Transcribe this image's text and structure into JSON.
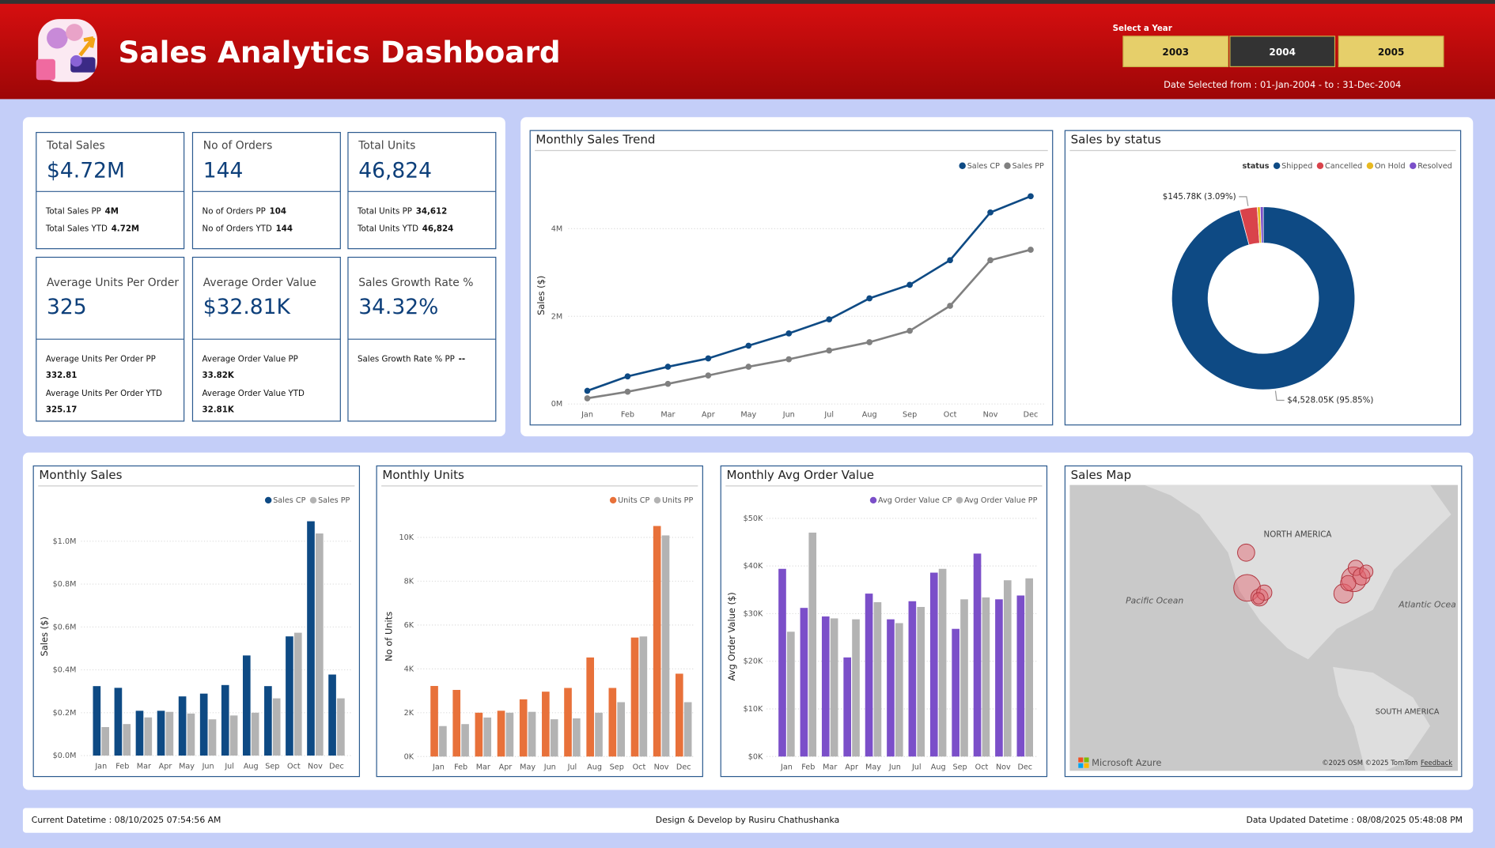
{
  "header": {
    "title": "Sales Analytics Dashboard",
    "year_label": "Select a Year",
    "years": [
      "2003",
      "2004",
      "2005"
    ],
    "selected_year": "2004",
    "date_range": "Date Selected from : 01-Jan-2004 - to : 31-Dec-2004"
  },
  "kpis": [
    {
      "title": "Total Sales",
      "value": "$4.72M",
      "details": [
        {
          "label": "Total Sales PP",
          "value": "4M"
        },
        {
          "label": "Total Sales YTD",
          "value": "4.72M"
        }
      ]
    },
    {
      "title": "No of Orders",
      "value": "144",
      "details": [
        {
          "label": "No of Orders PP",
          "value": "104"
        },
        {
          "label": "No of Orders YTD",
          "value": "144"
        }
      ]
    },
    {
      "title": "Total Units",
      "value": "46,824",
      "details": [
        {
          "label": "Total Units PP",
          "value": "34,612"
        },
        {
          "label": "Total Units YTD",
          "value": "46,824"
        }
      ]
    },
    {
      "title": "Average Units Per Order",
      "value": "325",
      "details": [
        {
          "label": "Average Units Per Order PP",
          "value": "332.81"
        },
        {
          "label": "Average Units Per Order YTD",
          "value": "325.17"
        }
      ]
    },
    {
      "title": "Average Order Value",
      "value": "$32.81K",
      "details": [
        {
          "label": "Average Order Value PP",
          "value": "33.82K"
        },
        {
          "label": "Average Order Value YTD",
          "value": "32.81K"
        }
      ]
    },
    {
      "title": "Sales Growth Rate %",
      "value": "34.32%",
      "details": [
        {
          "label": "Sales Growth Rate % PP",
          "value": "--"
        }
      ]
    }
  ],
  "chart_data": [
    {
      "type": "line",
      "title": "Monthly Sales Trend",
      "y_label": "Sales ($)",
      "categories": [
        "Jan",
        "Feb",
        "Mar",
        "Apr",
        "May",
        "Jun",
        "Jul",
        "Aug",
        "Sep",
        "Oct",
        "Nov",
        "Dec"
      ],
      "series": [
        {
          "name": "Sales CP",
          "color": "#0e4a84",
          "values": [
            300000,
            630000,
            850000,
            1040000,
            1330000,
            1610000,
            1930000,
            2410000,
            2720000,
            3280000,
            4370000,
            4740000
          ]
        },
        {
          "name": "Sales PP",
          "color": "#808080",
          "values": [
            130000,
            280000,
            460000,
            650000,
            850000,
            1020000,
            1220000,
            1410000,
            1670000,
            2240000,
            3280000,
            3520000
          ]
        }
      ],
      "ylim": [
        0,
        5000000
      ],
      "yticks": [
        {
          "value": 0,
          "label": "0M"
        },
        {
          "value": 2000000,
          "label": "2M"
        },
        {
          "value": 4000000,
          "label": "4M"
        }
      ],
      "grid": true,
      "legend": "top-right"
    },
    {
      "type": "donut",
      "title": "Sales by status",
      "legend_title": "status",
      "categories": [
        "Shipped",
        "Cancelled",
        "On Hold",
        "Resolved"
      ],
      "values": [
        4528050,
        145780,
        25000,
        25270
      ],
      "value_labels": [
        "$4,528.05K (95.85%)",
        "$145.78K (3.09%)",
        null,
        null
      ],
      "colors": [
        "#0e4a84",
        "#d9434b",
        "#e8b920",
        "#7b4fc9"
      ],
      "legend": "top-right"
    },
    {
      "type": "bar",
      "title": "Monthly Sales",
      "y_label": "Sales ($)",
      "categories": [
        "Jan",
        "Feb",
        "Mar",
        "Apr",
        "May",
        "Jun",
        "Jul",
        "Aug",
        "Sep",
        "Oct",
        "Nov",
        "Dec"
      ],
      "series": [
        {
          "name": "Sales CP",
          "color": "#0e4a84",
          "values": [
            324000,
            316000,
            209000,
            209000,
            276000,
            289000,
            329000,
            467000,
            324000,
            556000,
            1093000,
            378000
          ]
        },
        {
          "name": "Sales PP",
          "color": "#b3b3b3",
          "values": [
            133000,
            147000,
            178000,
            204000,
            196000,
            169000,
            187000,
            200000,
            267000,
            573000,
            1036000,
            267000
          ]
        }
      ],
      "ylim": [
        0,
        1120000
      ],
      "yticks": [
        {
          "value": 0,
          "label": "$0.0M"
        },
        {
          "value": 200000,
          "label": "$0.2M"
        },
        {
          "value": 400000,
          "label": "$0.4M"
        },
        {
          "value": 600000,
          "label": "$0.6M"
        },
        {
          "value": 800000,
          "label": "$0.8M"
        },
        {
          "value": 1000000,
          "label": "$1.0M"
        }
      ],
      "grid": true,
      "legend": "top-right"
    },
    {
      "type": "bar",
      "title": "Monthly Units",
      "y_label": "No of Units",
      "categories": [
        "Jan",
        "Feb",
        "Mar",
        "Apr",
        "May",
        "Jun",
        "Jul",
        "Aug",
        "Sep",
        "Oct",
        "Nov",
        "Dec"
      ],
      "series": [
        {
          "name": "Units CP",
          "color": "#e8713a",
          "values": [
            3220,
            3040,
            2000,
            2090,
            2610,
            2960,
            3130,
            4520,
            3130,
            5430,
            10520,
            3780
          ]
        },
        {
          "name": "Units PP",
          "color": "#b3b3b3",
          "values": [
            1390,
            1480,
            1780,
            2000,
            2040,
            1700,
            1740,
            2000,
            2480,
            5480,
            10090,
            2480
          ]
        }
      ],
      "ylim": [
        0,
        11000
      ],
      "yticks": [
        {
          "value": 0,
          "label": "0K"
        },
        {
          "value": 2000,
          "label": "2K"
        },
        {
          "value": 4000,
          "label": "4K"
        },
        {
          "value": 6000,
          "label": "6K"
        },
        {
          "value": 8000,
          "label": "8K"
        },
        {
          "value": 10000,
          "label": "10K"
        }
      ],
      "grid": true,
      "legend": "top-right"
    },
    {
      "type": "bar",
      "title": "Monthly Avg Order Value",
      "y_label": "Avg Order Value ($)",
      "categories": [
        "Jan",
        "Feb",
        "Mar",
        "Apr",
        "May",
        "Jun",
        "Jul",
        "Aug",
        "Sep",
        "Oct",
        "Nov",
        "Dec"
      ],
      "series": [
        {
          "name": "Avg Order Value CP",
          "color": "#7b4fc9",
          "values": [
            39400,
            31200,
            29400,
            20800,
            34200,
            28800,
            32600,
            38600,
            26800,
            42600,
            33000,
            33800
          ]
        },
        {
          "name": "Avg Order Value PP",
          "color": "#b3b3b3",
          "values": [
            26200,
            47000,
            29000,
            28800,
            32400,
            28000,
            31400,
            39400,
            33000,
            33400,
            37000,
            37400
          ]
        }
      ],
      "ylim": [
        0,
        51000
      ],
      "yticks": [
        {
          "value": 0,
          "label": "$0K"
        },
        {
          "value": 10000,
          "label": "$10K"
        },
        {
          "value": 20000,
          "label": "$20K"
        },
        {
          "value": 30000,
          "label": "$30K"
        },
        {
          "value": 40000,
          "label": "$40K"
        },
        {
          "value": 50000,
          "label": "$50K"
        }
      ],
      "grid": true,
      "legend": "top-right"
    }
  ],
  "map": {
    "title": "Sales Map",
    "labels": [
      "NORTH AMERICA",
      "Pacific Ocean",
      "Atlantic Ocea",
      "SOUTH AMERICA"
    ],
    "brand": "Microsoft Azure",
    "copyright": "©2025 OSM ©2025 TomTom",
    "feedback": "Feedback"
  },
  "footer": {
    "current": "Current Datetime : 08/10/2025 07:54:56 AM",
    "credit": "Design & Develop by Rusiru Chathushanka",
    "updated": "Data Updated Datetime : 08/08/2025 05:48:08 PM"
  }
}
